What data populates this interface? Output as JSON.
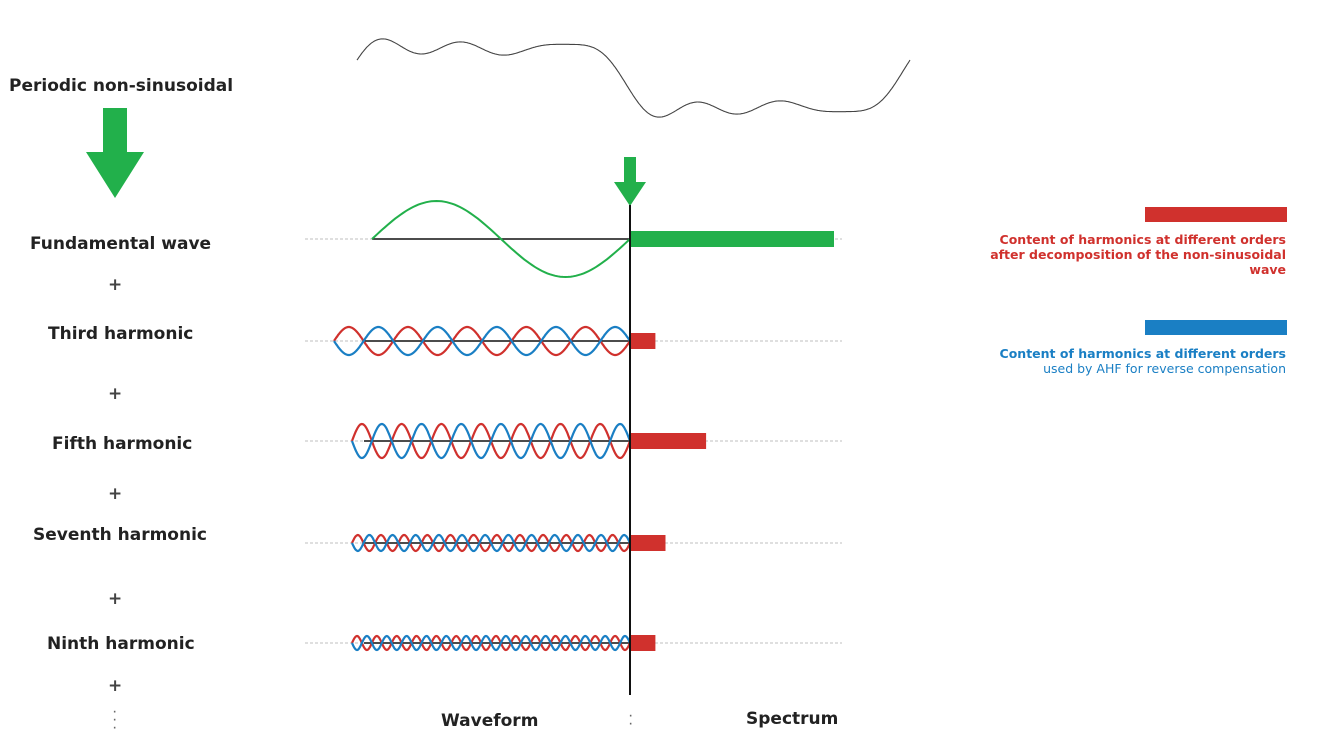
{
  "title": "Periodic non-sinusoidal",
  "components": [
    {
      "id": "fundamental",
      "label": "Fundamental wave",
      "cycles": 1,
      "spectrum": "green",
      "bar_level": 1.0
    },
    {
      "id": "third",
      "label": "Third harmonic",
      "cycles": 3,
      "spectrum": "red",
      "bar_level": 0.12
    },
    {
      "id": "fifth",
      "label": "Fifth harmonic",
      "cycles": 5,
      "spectrum": "red",
      "bar_level": 0.37
    },
    {
      "id": "seventh",
      "label": "Seventh harmonic",
      "cycles": 7,
      "spectrum": "red",
      "bar_level": 0.17
    },
    {
      "id": "ninth",
      "label": "Ninth harmonic",
      "cycles": 9,
      "spectrum": "red",
      "bar_level": 0.12
    }
  ],
  "plus_sign": "+",
  "axis": {
    "waveform_label": "Waveform",
    "spectrum_label": "Spectrum"
  },
  "legend": {
    "red": {
      "color": "#d0312d",
      "text_line1": "Content of harmonics at different orders",
      "text_line2": "after decomposition of the non-sinusoidal",
      "text_line3": "wave"
    },
    "blue": {
      "color": "#1a7fc4",
      "text_line1": "Content of harmonics at different orders",
      "text_line2": "used by AHF for reverse compensation"
    }
  },
  "colors": {
    "green": "#22b04b",
    "red": "#d0312d",
    "blue": "#1a7fc4",
    "axis": "#111111"
  },
  "icons": {
    "arrow": "down-arrow-icon"
  }
}
